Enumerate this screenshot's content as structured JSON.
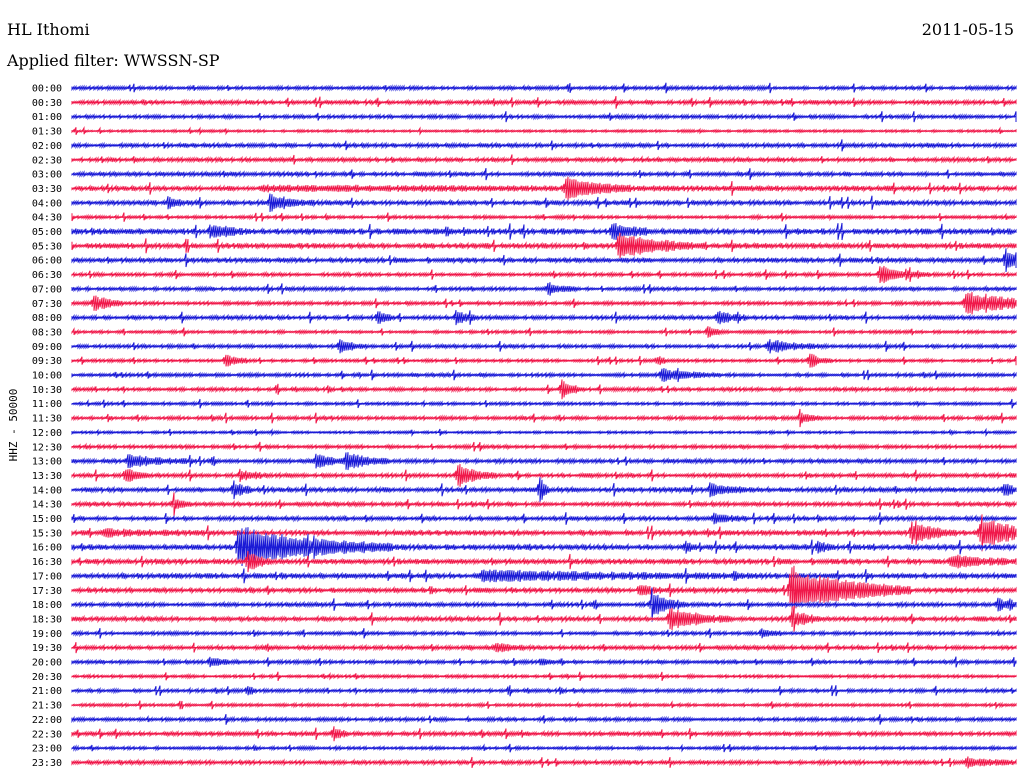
{
  "header": {
    "station": "HL Ithomi",
    "date": "2011-05-15",
    "filter_label": "Applied filter: WWSSN-SP"
  },
  "chart_data": {
    "type": "line",
    "title": "HL Ithomi",
    "ylabel": "HHZ - 50000",
    "colors": [
      "#1a1ad6",
      "#f0184a"
    ],
    "row_labels": [
      "00:00",
      "00:30",
      "01:00",
      "01:30",
      "02:00",
      "02:30",
      "03:00",
      "03:30",
      "04:00",
      "04:30",
      "05:00",
      "05:30",
      "06:00",
      "06:30",
      "07:00",
      "07:30",
      "08:00",
      "08:30",
      "09:00",
      "09:30",
      "10:00",
      "10:30",
      "11:00",
      "11:30",
      "12:00",
      "12:30",
      "13:00",
      "13:30",
      "14:00",
      "14:30",
      "15:00",
      "15:30",
      "16:00",
      "16:30",
      "17:00",
      "17:30",
      "18:00",
      "18:30",
      "19:00",
      "19:30",
      "20:00",
      "20:30",
      "21:00",
      "21:30",
      "22:00",
      "22:30",
      "23:00",
      "23:30"
    ],
    "row_noise": [
      1.4,
      1.6,
      1.4,
      1.0,
      1.6,
      1.6,
      1.6,
      1.8,
      1.8,
      1.2,
      2.2,
      2.0,
      1.8,
      1.4,
      1.4,
      1.4,
      1.6,
      1.2,
      1.4,
      1.2,
      1.4,
      1.4,
      1.2,
      1.4,
      1.0,
      1.4,
      1.6,
      1.6,
      1.8,
      1.6,
      1.6,
      2.0,
      2.0,
      2.0,
      2.0,
      1.8,
      1.6,
      1.8,
      1.4,
      1.6,
      1.4,
      1.2,
      1.4,
      1.2,
      1.4,
      1.6,
      1.2,
      1.6
    ],
    "events": [
      {
        "row": 7,
        "x": 565,
        "amp": 11,
        "dur": 30
      },
      {
        "row": 7,
        "x": 260,
        "amp": 2,
        "dur": 300
      },
      {
        "row": 8,
        "x": 270,
        "amp": 8,
        "dur": 20
      },
      {
        "row": 8,
        "x": 168,
        "amp": 5,
        "dur": 10
      },
      {
        "row": 10,
        "x": 210,
        "amp": 6,
        "dur": 20
      },
      {
        "row": 10,
        "x": 612,
        "amp": 8,
        "dur": 18
      },
      {
        "row": 11,
        "x": 618,
        "amp": 12,
        "dur": 40
      },
      {
        "row": 12,
        "x": 1005,
        "amp": 18,
        "dur": 6
      },
      {
        "row": 13,
        "x": 880,
        "amp": 9,
        "dur": 22
      },
      {
        "row": 14,
        "x": 548,
        "amp": 6,
        "dur": 14
      },
      {
        "row": 15,
        "x": 93,
        "amp": 10,
        "dur": 14
      },
      {
        "row": 15,
        "x": 965,
        "amp": 13,
        "dur": 45
      },
      {
        "row": 16,
        "x": 455,
        "amp": 9,
        "dur": 10
      },
      {
        "row": 16,
        "x": 378,
        "amp": 7,
        "dur": 8
      },
      {
        "row": 16,
        "x": 718,
        "amp": 6,
        "dur": 14
      },
      {
        "row": 17,
        "x": 708,
        "amp": 7,
        "dur": 8
      },
      {
        "row": 18,
        "x": 340,
        "amp": 7,
        "dur": 12
      },
      {
        "row": 18,
        "x": 768,
        "amp": 7,
        "dur": 26
      },
      {
        "row": 19,
        "x": 225,
        "amp": 7,
        "dur": 12
      },
      {
        "row": 19,
        "x": 810,
        "amp": 8,
        "dur": 10
      },
      {
        "row": 19,
        "x": 657,
        "amp": 6,
        "dur": 6
      },
      {
        "row": 20,
        "x": 662,
        "amp": 6,
        "dur": 26
      },
      {
        "row": 21,
        "x": 562,
        "amp": 9,
        "dur": 10
      },
      {
        "row": 23,
        "x": 800,
        "amp": 5,
        "dur": 12
      },
      {
        "row": 26,
        "x": 128,
        "amp": 6,
        "dur": 30
      },
      {
        "row": 26,
        "x": 315,
        "amp": 8,
        "dur": 14
      },
      {
        "row": 26,
        "x": 345,
        "amp": 10,
        "dur": 20
      },
      {
        "row": 27,
        "x": 125,
        "amp": 9,
        "dur": 12
      },
      {
        "row": 27,
        "x": 457,
        "amp": 12,
        "dur": 18
      },
      {
        "row": 27,
        "x": 240,
        "amp": 5,
        "dur": 14
      },
      {
        "row": 28,
        "x": 234,
        "amp": 10,
        "dur": 8
      },
      {
        "row": 28,
        "x": 540,
        "amp": 14,
        "dur": 4
      },
      {
        "row": 28,
        "x": 710,
        "amp": 6,
        "dur": 20
      },
      {
        "row": 28,
        "x": 1003,
        "amp": 6,
        "dur": 10
      },
      {
        "row": 29,
        "x": 174,
        "amp": 6,
        "dur": 8
      },
      {
        "row": 30,
        "x": 714,
        "amp": 5,
        "dur": 16
      },
      {
        "row": 31,
        "x": 912,
        "amp": 11,
        "dur": 20
      },
      {
        "row": 31,
        "x": 980,
        "amp": 12,
        "dur": 55
      },
      {
        "row": 31,
        "x": 105,
        "amp": 3,
        "dur": 40
      },
      {
        "row": 32,
        "x": 238,
        "amp": 22,
        "dur": 70
      },
      {
        "row": 32,
        "x": 818,
        "amp": 6,
        "dur": 8
      },
      {
        "row": 32,
        "x": 686,
        "amp": 5,
        "dur": 6
      },
      {
        "row": 33,
        "x": 952,
        "amp": 6,
        "dur": 30
      },
      {
        "row": 33,
        "x": 248,
        "amp": 12,
        "dur": 10
      },
      {
        "row": 34,
        "x": 482,
        "amp": 5,
        "dur": 125
      },
      {
        "row": 34,
        "x": 733,
        "amp": 6,
        "dur": 4
      },
      {
        "row": 35,
        "x": 790,
        "amp": 24,
        "dur": 55
      },
      {
        "row": 35,
        "x": 640,
        "amp": 6,
        "dur": 14
      },
      {
        "row": 36,
        "x": 652,
        "amp": 14,
        "dur": 16
      },
      {
        "row": 36,
        "x": 998,
        "amp": 6,
        "dur": 14
      },
      {
        "row": 37,
        "x": 670,
        "amp": 11,
        "dur": 28
      },
      {
        "row": 37,
        "x": 792,
        "amp": 9,
        "dur": 14
      },
      {
        "row": 38,
        "x": 762,
        "amp": 5,
        "dur": 10
      },
      {
        "row": 39,
        "x": 496,
        "amp": 4,
        "dur": 16
      },
      {
        "row": 40,
        "x": 210,
        "amp": 4,
        "dur": 14
      },
      {
        "row": 40,
        "x": 540,
        "amp": 3,
        "dur": 10
      },
      {
        "row": 42,
        "x": 248,
        "amp": 6,
        "dur": 4
      },
      {
        "row": 45,
        "x": 334,
        "amp": 7,
        "dur": 8
      },
      {
        "row": 47,
        "x": 965,
        "amp": 5,
        "dur": 22
      }
    ]
  }
}
